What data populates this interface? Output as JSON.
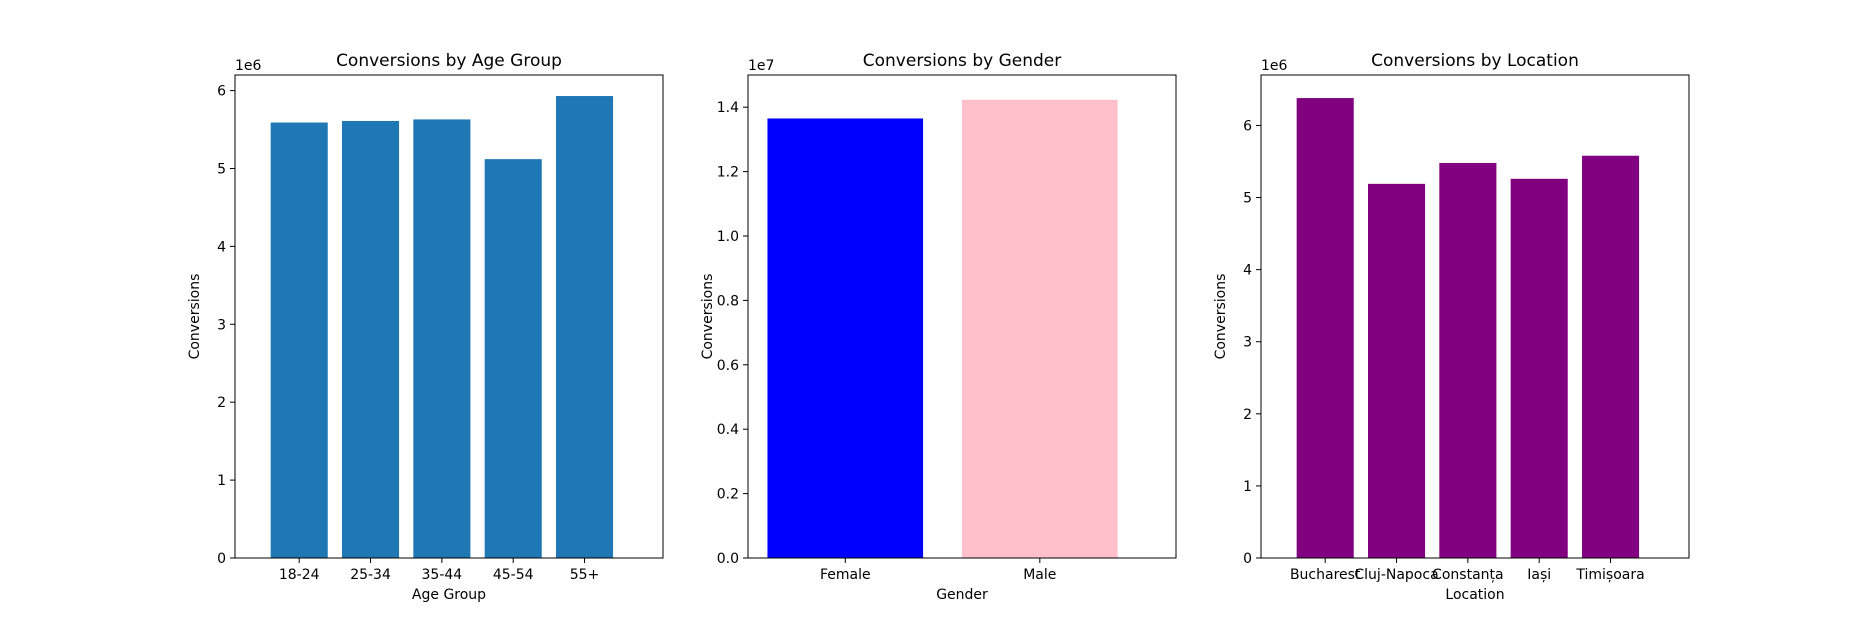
{
  "chart_data": [
    {
      "type": "bar",
      "title": "Conversions by Age Group",
      "xlabel": "Age Group",
      "ylabel": "Conversions",
      "offset_label": "1e6",
      "ylim": [
        0,
        6200000
      ],
      "yticks": [
        0,
        1,
        2,
        3,
        4,
        5,
        6
      ],
      "categories": [
        "18-24",
        "25-34",
        "35-44",
        "45-54",
        "55+"
      ],
      "values": [
        5590000,
        5610000,
        5630000,
        5120000,
        5930000
      ],
      "colors": [
        "#1f77b4",
        "#1f77b4",
        "#1f77b4",
        "#1f77b4",
        "#1f77b4"
      ]
    },
    {
      "type": "bar",
      "title": "Conversions by Gender",
      "xlabel": "Gender",
      "ylabel": "Conversions",
      "offset_label": "1e7",
      "ylim": [
        0,
        15000000
      ],
      "yticks": [
        0.0,
        0.2,
        0.4,
        0.6,
        0.8,
        1.0,
        1.2,
        1.4
      ],
      "categories": [
        "Female",
        "Male"
      ],
      "values": [
        13650000,
        14230000
      ],
      "colors": [
        "#0000ff",
        "#ffc0cb"
      ]
    },
    {
      "type": "bar",
      "title": "Conversions by Location",
      "xlabel": "Location",
      "ylabel": "Conversions",
      "offset_label": "1e6",
      "ylim": [
        0,
        6700000
      ],
      "yticks": [
        0,
        1,
        2,
        3,
        4,
        5,
        6
      ],
      "categories": [
        "Bucharest",
        "Cluj-Napoca",
        "Constanța",
        "Iași",
        "Timișoara"
      ],
      "values": [
        6380000,
        5190000,
        5480000,
        5260000,
        5580000
      ],
      "colors": [
        "#800080",
        "#800080",
        "#800080",
        "#800080",
        "#800080"
      ]
    }
  ]
}
